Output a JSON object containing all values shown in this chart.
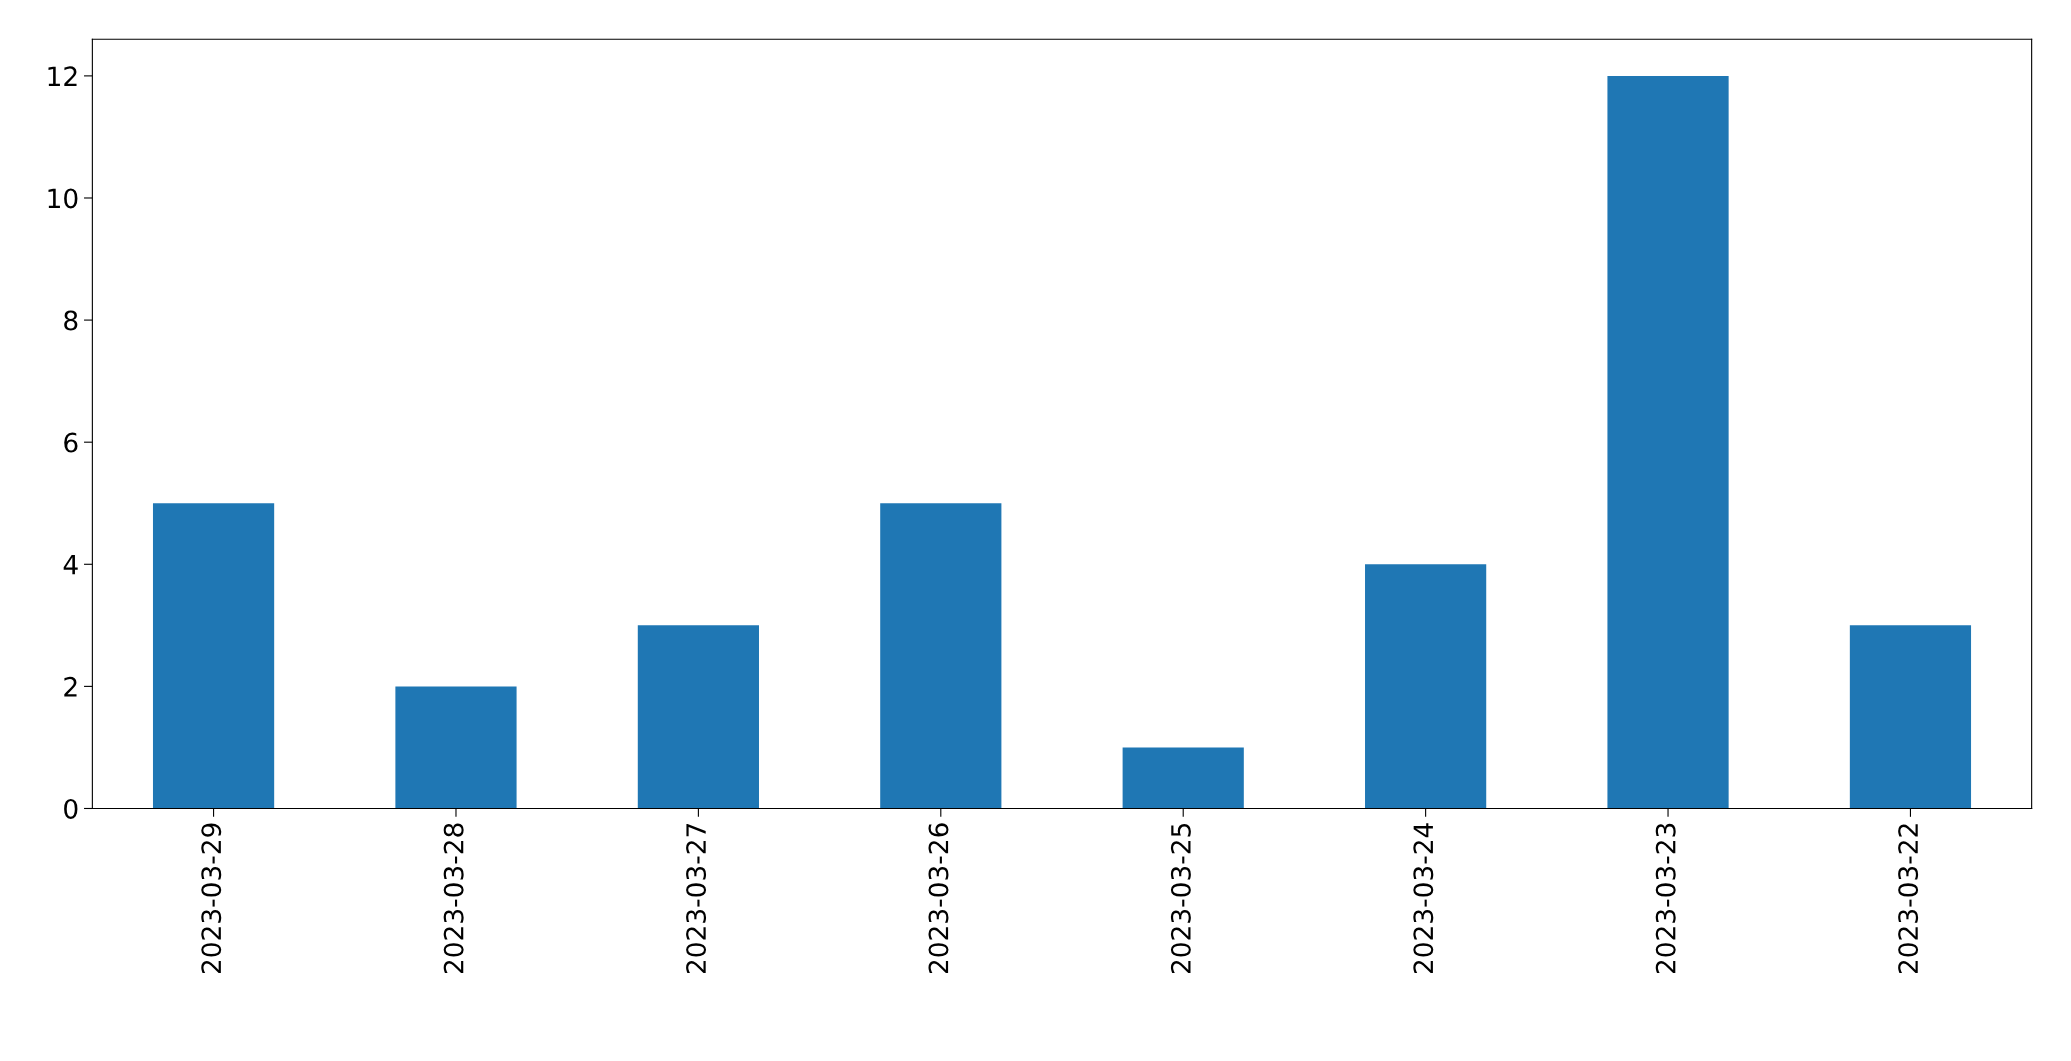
{
  "chart_data": {
    "type": "bar",
    "categories": [
      "2023-03-29",
      "2023-03-28",
      "2023-03-27",
      "2023-03-26",
      "2023-03-25",
      "2023-03-24",
      "2023-03-23",
      "2023-03-22"
    ],
    "values": [
      5,
      2,
      3,
      5,
      1,
      4,
      12,
      3
    ],
    "color": "#1f77b4",
    "ylim": [
      0,
      12.6
    ],
    "yticks": [
      0,
      2,
      4,
      6,
      8,
      10,
      12
    ],
    "grid": false,
    "legend": false
  }
}
